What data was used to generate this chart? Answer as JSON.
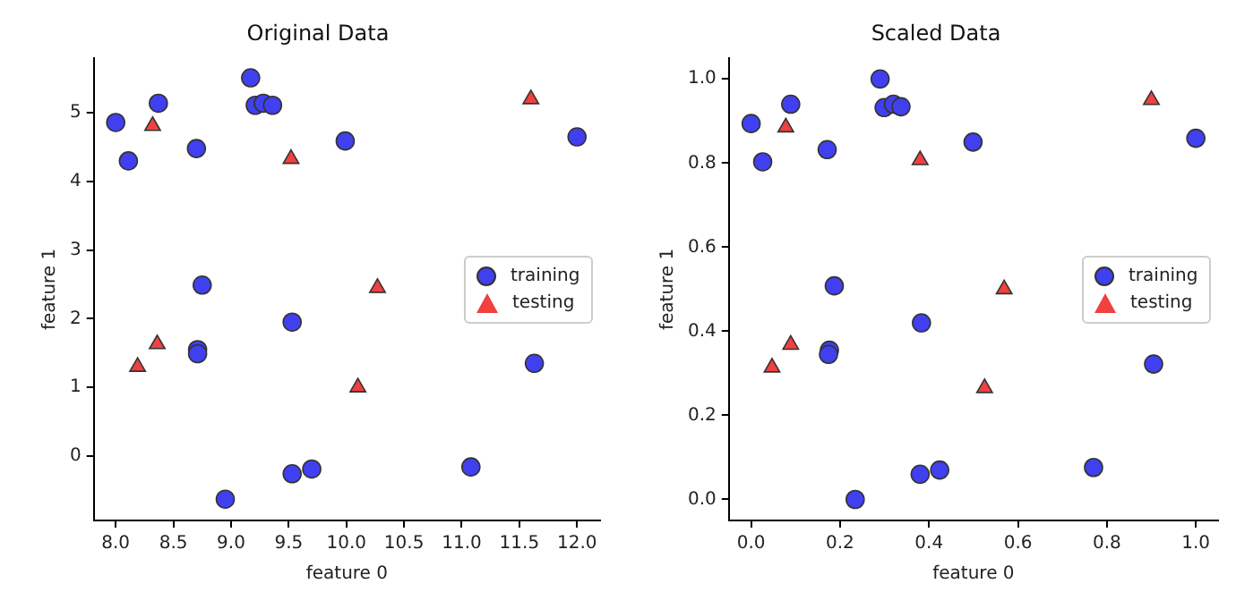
{
  "chart_data": [
    {
      "type": "scatter",
      "title": "Original Data",
      "xlabel": "feature 0",
      "ylabel": "feature 1",
      "xlim": [
        7.81,
        12.2
      ],
      "ylim": [
        -0.94,
        5.8
      ],
      "xticks": [
        {
          "value": 8,
          "label": "8.0"
        },
        {
          "value": 8.5,
          "label": "8.5"
        },
        {
          "value": 9,
          "label": "9.0"
        },
        {
          "value": 9.5,
          "label": "9.5"
        },
        {
          "value": 10,
          "label": "10.0"
        },
        {
          "value": 10.5,
          "label": "10.5"
        },
        {
          "value": 11,
          "label": "11.0"
        },
        {
          "value": 11.5,
          "label": "11.5"
        },
        {
          "value": 12,
          "label": "12.0"
        }
      ],
      "yticks": [
        0,
        1,
        2,
        3,
        4,
        5
      ],
      "grid": false,
      "legend": "right",
      "series": [
        {
          "name": "training",
          "color": "#4040f0",
          "marker": "circle",
          "x": [
            8.0,
            8.11,
            8.37,
            8.7,
            9.17,
            9.21,
            9.28,
            9.36,
            9.99,
            12.0,
            8.75,
            8.71,
            8.71,
            9.53,
            11.63,
            9.53,
            9.7,
            8.95,
            11.08
          ],
          "values": [
            4.86,
            4.3,
            5.14,
            4.48,
            5.51,
            5.11,
            5.14,
            5.11,
            4.59,
            4.65,
            2.49,
            1.55,
            1.49,
            1.95,
            1.35,
            -0.26,
            -0.19,
            -0.63,
            -0.16
          ]
        },
        {
          "name": "testing",
          "color": "#f04040",
          "marker": "triangle",
          "x": [
            8.32,
            9.52,
            11.6,
            10.27,
            8.36,
            8.19,
            10.1
          ],
          "values": [
            4.81,
            4.33,
            5.2,
            2.45,
            1.63,
            1.3,
            1.0
          ]
        }
      ]
    },
    {
      "type": "scatter",
      "title": "Scaled Data",
      "xlabel": "feature 0",
      "ylabel": "feature 1",
      "xlim": [
        -0.05,
        1.05
      ],
      "ylim": [
        -0.05,
        1.05
      ],
      "xticks": [
        {
          "value": 0,
          "label": "0.0"
        },
        {
          "value": 0.2,
          "label": "0.2"
        },
        {
          "value": 0.4,
          "label": "0.4"
        },
        {
          "value": 0.6,
          "label": "0.6"
        },
        {
          "value": 0.8,
          "label": "0.8"
        },
        {
          "value": 1,
          "label": "1.0"
        }
      ],
      "yticks": [
        {
          "value": 0,
          "label": "0.0"
        },
        {
          "value": 0.2,
          "label": "0.2"
        },
        {
          "value": 0.4,
          "label": "0.4"
        },
        {
          "value": 0.6,
          "label": "0.6"
        },
        {
          "value": 0.8,
          "label": "0.8"
        },
        {
          "value": 1,
          "label": "1.0"
        }
      ],
      "grid": false,
      "legend": "right",
      "series": [
        {
          "name": "training",
          "color": "#4040f0",
          "marker": "circle",
          "x": [
            0,
            0.026,
            0.089,
            0.171,
            0.29,
            0.299,
            0.32,
            0.337,
            0.499,
            1.0,
            0.187,
            0.176,
            0.174,
            0.383,
            0.905,
            0.38,
            0.424,
            0.234,
            0.77
          ],
          "values": [
            0.894,
            0.803,
            0.94,
            0.832,
            1.0,
            0.932,
            0.94,
            0.934,
            0.85,
            0.859,
            0.508,
            0.355,
            0.345,
            0.42,
            0.322,
            0.06,
            0.07,
            0,
            0.076
          ]
        },
        {
          "name": "testing",
          "color": "#f04040",
          "marker": "triangle",
          "x": [
            0.078,
            0.38,
            0.9,
            0.569,
            0.089,
            0.047,
            0.525
          ],
          "values": [
            0.885,
            0.807,
            0.95,
            0.5,
            0.368,
            0.314,
            0.265
          ]
        }
      ]
    }
  ]
}
